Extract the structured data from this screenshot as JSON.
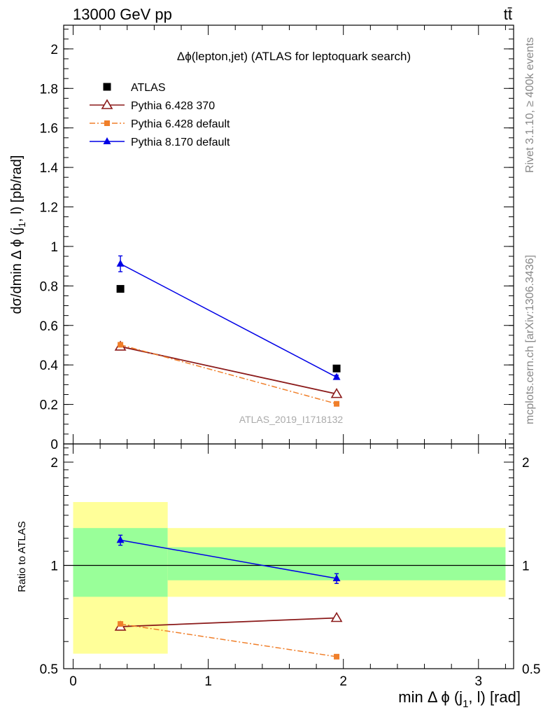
{
  "header": {
    "left": "13000 GeV pp",
    "right": "tt̄"
  },
  "side_labels": {
    "rivet": "Rivet 3.1.10, ≥ 400k events",
    "mcplots": "mcplots.cern.ch [arXiv:1306.3436]"
  },
  "chart_data": [
    {
      "type": "scatter",
      "title": "Δϕ(lepton,jet) (ATLAS for leptoquark search)",
      "ylabel": "dσ/dmin Δ ϕ (j1, l) [pb/rad]",
      "xlim": [
        -0.07,
        3.26
      ],
      "ylim": [
        0,
        2.12
      ],
      "y_ticks": [
        "0",
        "0.2",
        "0.4",
        "0.6",
        "0.8",
        "1",
        "1.2",
        "1.4",
        "1.6",
        "1.8",
        "2"
      ],
      "watermark": "ATLAS_2019_I1718132",
      "grid": false,
      "legend_position": "top-left",
      "bin_edges": [
        0,
        0.7,
        3.2
      ],
      "series": [
        {
          "name": "ATLAS",
          "marker": "filled-square",
          "color": "#000000",
          "line": "none",
          "x": [
            0.35,
            1.95
          ],
          "y": [
            0.785,
            0.382
          ],
          "err": [
            0.0,
            0.0
          ]
        },
        {
          "name": "Pythia 6.428 370",
          "marker": "open-triangle",
          "color": "#8b1a1a",
          "line": "solid",
          "x": [
            0.35,
            1.95
          ],
          "y": [
            0.493,
            0.253
          ],
          "err": [
            0.0,
            0.0
          ]
        },
        {
          "name": "Pythia 6.428 default",
          "marker": "small-square",
          "color": "#f07f2a",
          "line": "dashdot",
          "x": [
            0.35,
            1.95
          ],
          "y": [
            0.502,
            0.203
          ],
          "err": [
            0.0,
            0.0
          ]
        },
        {
          "name": "Pythia 8.170 default",
          "marker": "filled-triangle",
          "color": "#0000e6",
          "line": "solid",
          "x": [
            0.35,
            1.95
          ],
          "y": [
            0.912,
            0.338
          ],
          "err": [
            0.04,
            0.01
          ]
        }
      ]
    },
    {
      "type": "scatter",
      "ylabel": "Ratio to ATLAS",
      "xlabel": "min Δ ϕ (j1, l) [rad]",
      "xlim": [
        -0.07,
        3.26
      ],
      "ylim": [
        0.5,
        2.26
      ],
      "y_scale": "log",
      "x_ticks": [
        "0",
        "1",
        "2",
        "3"
      ],
      "y_ticks": [
        "0.5",
        "1",
        "2"
      ],
      "reference_line": 1,
      "bands": [
        {
          "x0": 0,
          "x1": 0.7,
          "yellow": [
            0.553,
            1.53
          ],
          "green": [
            0.81,
            1.285
          ]
        },
        {
          "x0": 0.7,
          "x1": 3.2,
          "yellow": [
            0.81,
            1.285
          ],
          "green": [
            0.905,
            1.13
          ]
        }
      ],
      "series": [
        {
          "name": "Pythia 6.428 370",
          "marker": "open-triangle",
          "color": "#8b1a1a",
          "line": "solid",
          "x": [
            0.35,
            1.95
          ],
          "y": [
            0.663,
            0.703
          ],
          "err": [
            0.0,
            0.0
          ]
        },
        {
          "name": "Pythia 6.428 default",
          "marker": "small-square",
          "color": "#f07f2a",
          "line": "dashdot",
          "x": [
            0.35,
            1.95
          ],
          "y": [
            0.675,
            0.542
          ],
          "err": [
            0.0,
            0.0
          ]
        },
        {
          "name": "Pythia 8.170 default",
          "marker": "filled-triangle",
          "color": "#0000e6",
          "line": "solid",
          "x": [
            0.35,
            1.95
          ],
          "y": [
            1.185,
            0.916
          ],
          "err": [
            0.04,
            0.03
          ]
        }
      ]
    }
  ]
}
